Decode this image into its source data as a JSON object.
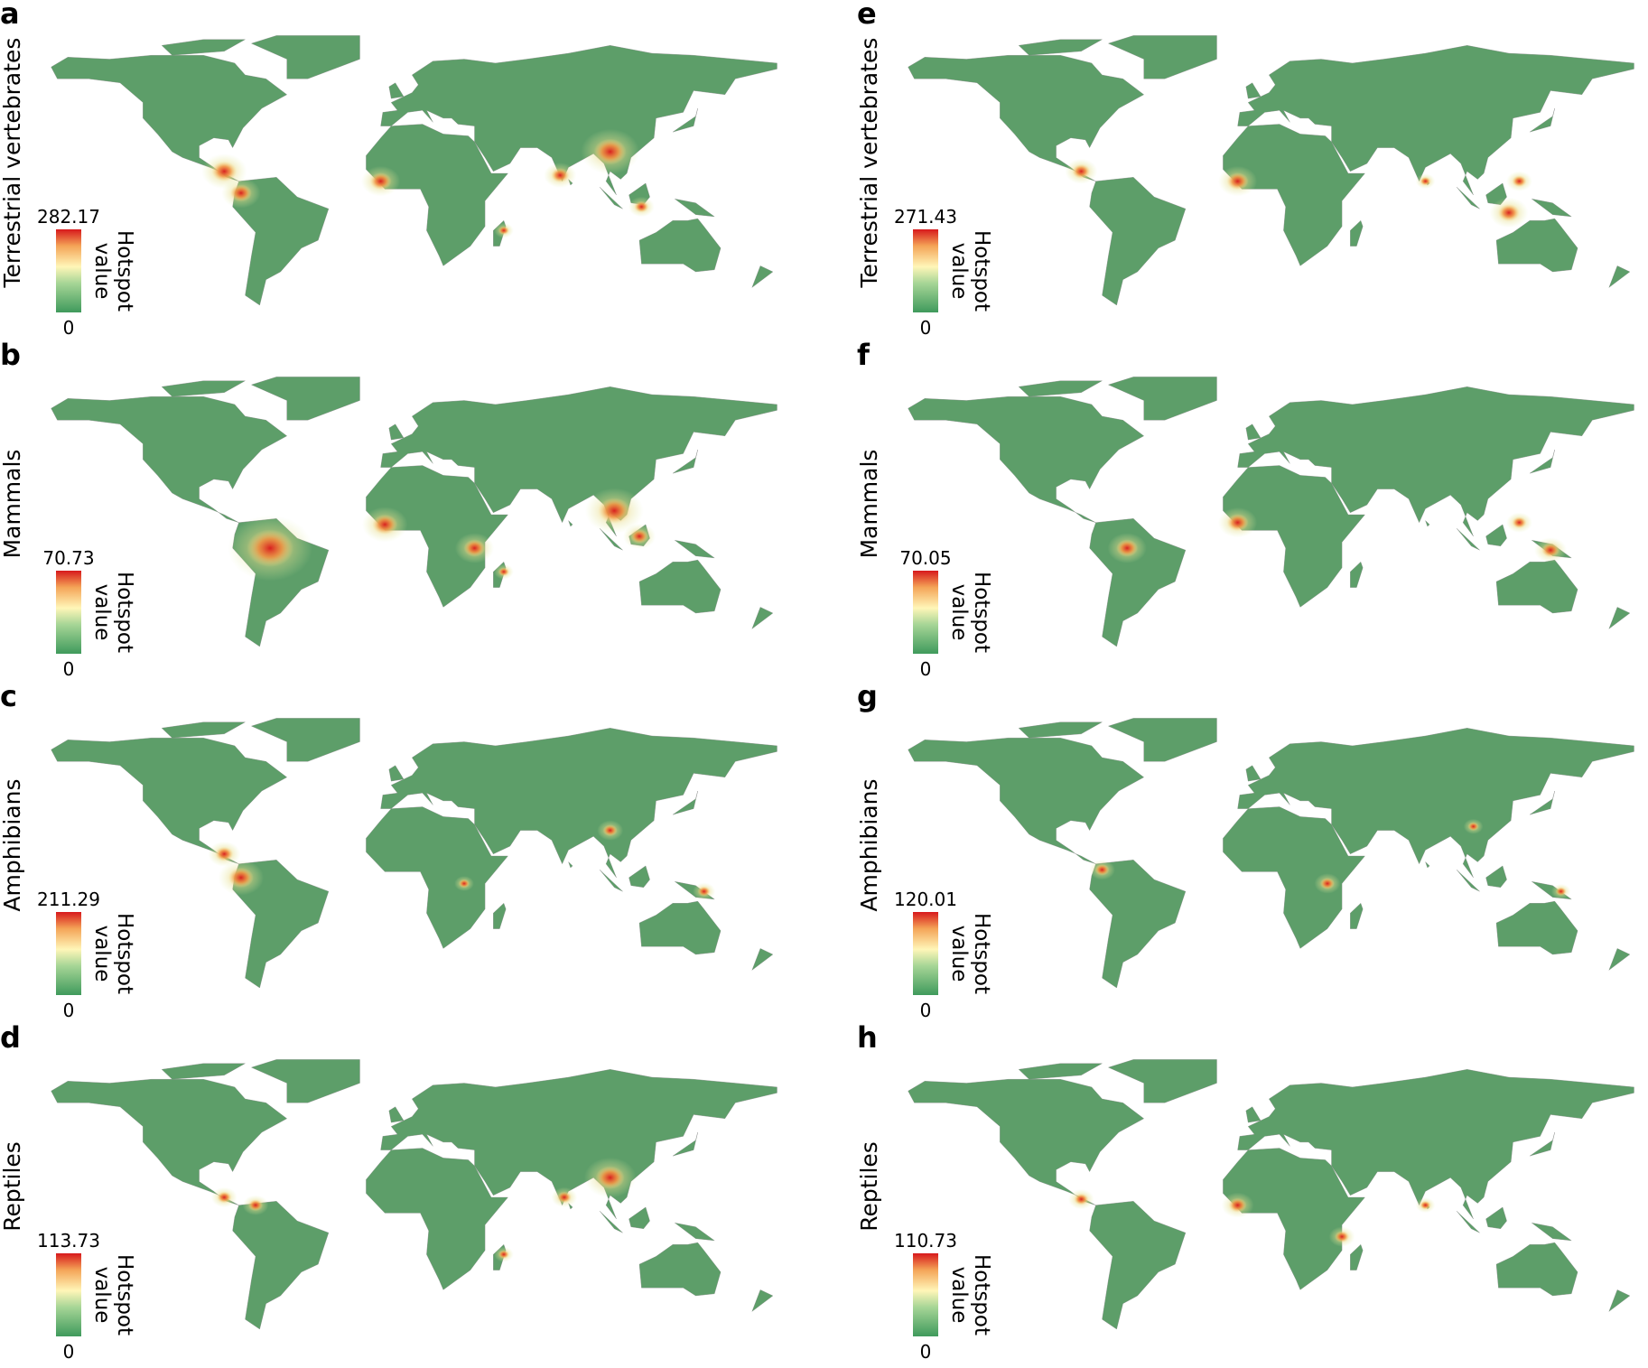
{
  "panels": [
    {
      "letter": "a",
      "label": "Terrestrial vertebrates",
      "max": 282.17,
      "min": 0,
      "legend_title": [
        "Hotspot",
        "value"
      ]
    },
    {
      "letter": "b",
      "label": "Mammals",
      "max": 70.73,
      "min": 0,
      "legend_title": [
        "Hotspot",
        "value"
      ]
    },
    {
      "letter": "c",
      "label": "Amphibians",
      "max": 211.29,
      "min": 0,
      "legend_title": [
        "Hotspot",
        "value"
      ]
    },
    {
      "letter": "d",
      "label": "Reptiles",
      "max": 113.73,
      "min": 0,
      "legend_title": [
        "Hotspot",
        "value"
      ]
    },
    {
      "letter": "e",
      "label": "Terrestrial vertebrates",
      "max": 271.43,
      "min": 0,
      "legend_title": [
        "Hotspot",
        "value"
      ]
    },
    {
      "letter": "f",
      "label": "Mammals",
      "max": 70.05,
      "min": 0,
      "legend_title": [
        "Hotspot",
        "value"
      ]
    },
    {
      "letter": "g",
      "label": "Amphibians",
      "max": 120.01,
      "min": 0,
      "legend_title": [
        "Hotspot",
        "value"
      ]
    },
    {
      "letter": "h",
      "label": "Reptiles",
      "max": 110.73,
      "min": 0,
      "legend_title": [
        "Hotspot",
        "value"
      ]
    }
  ]
}
